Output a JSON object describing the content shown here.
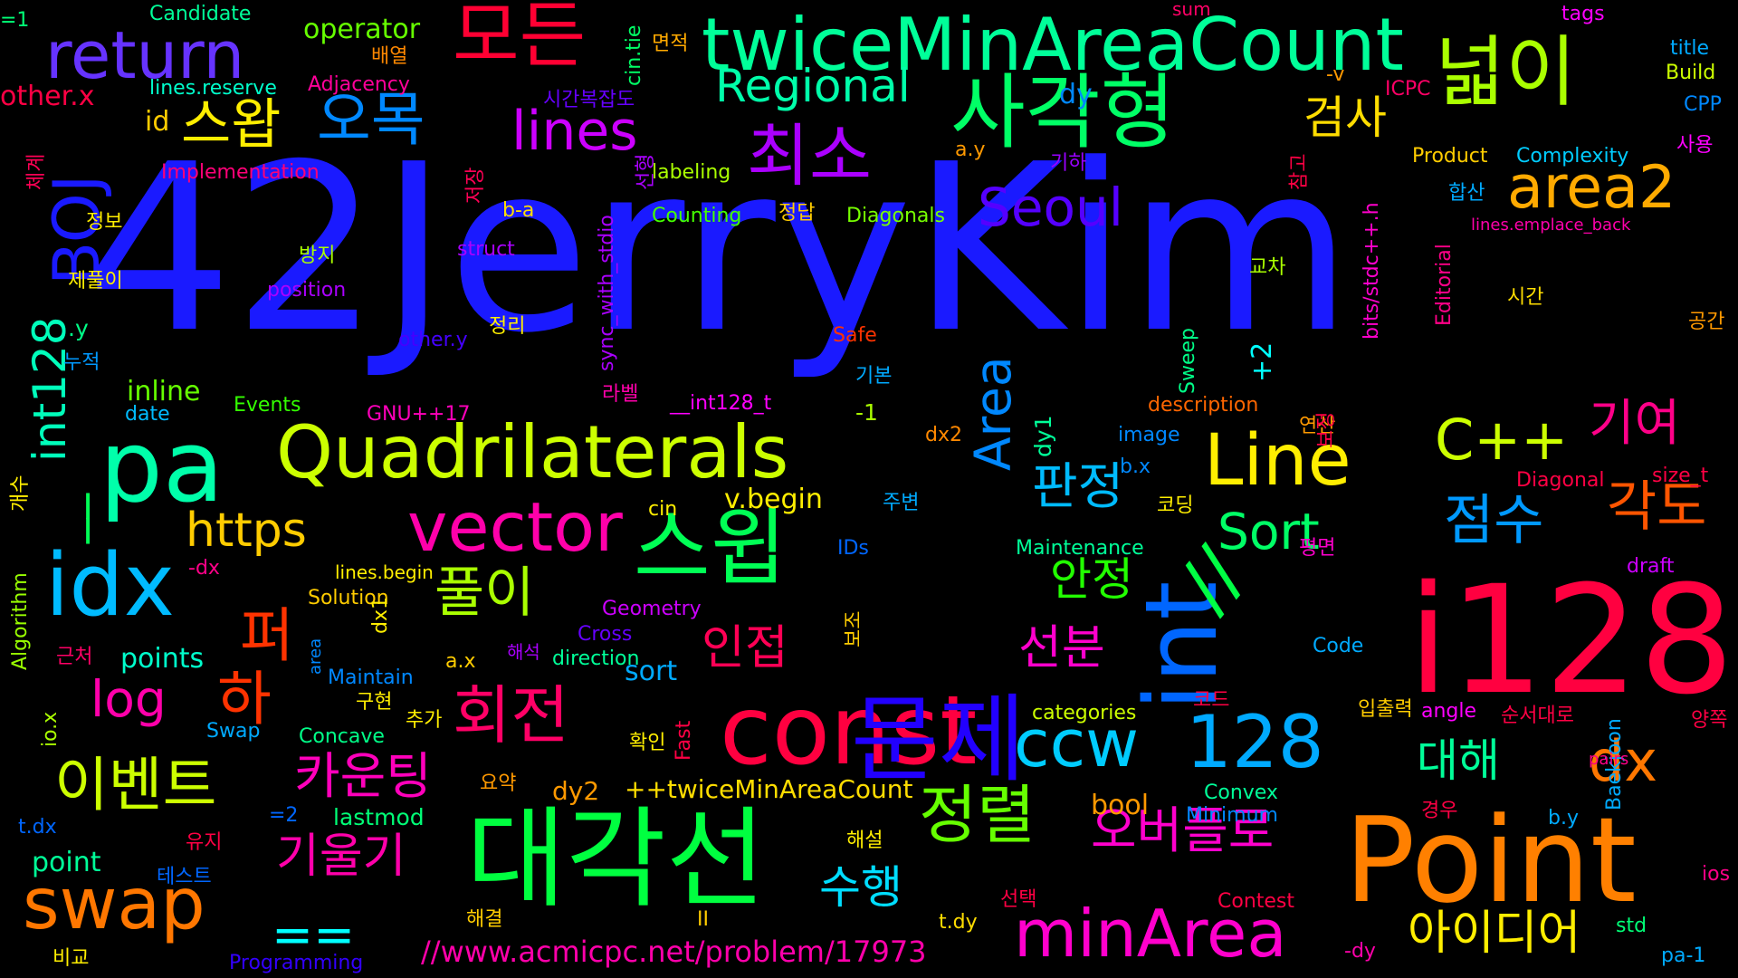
{
  "words": [
    {
      "text": "42JerryKim",
      "color": "#1a1aff"
    },
    {
      "text": "i128",
      "color": "#ff0040"
    },
    {
      "text": "Point",
      "color": "#ff8000"
    },
    {
      "text": "Quadrilaterals",
      "color": "#ccff00"
    },
    {
      "text": "대각선",
      "color": "#00ff40"
    },
    {
      "text": "const",
      "color": "#ff0040"
    },
    {
      "text": "int",
      "color": "#0066ff"
    },
    {
      "text": "twiceMinAreaCount",
      "color": "#00ff99"
    },
    {
      "text": "사각형",
      "color": "#00ff66"
    },
    {
      "text": "pa",
      "color": "#00ffaa"
    },
    {
      "text": "idx",
      "color": "#00bbff"
    },
    {
      "text": "BOJ",
      "color": "#1a1aff"
    },
    {
      "text": "return",
      "color": "#6633ff"
    },
    {
      "text": "모든",
      "color": "#ff0033"
    },
    {
      "text": "넓이",
      "color": "#aaff00"
    },
    {
      "text": "vector",
      "color": "#ff00aa"
    },
    {
      "text": "스윕",
      "color": "#00ff55"
    },
    {
      "text": "Line",
      "color": "#ffee00"
    },
    {
      "text": "swap",
      "color": "#ff7700"
    },
    {
      "text": "minArea",
      "color": "#ff00cc"
    },
    {
      "text": "ccw",
      "color": "#00ccff"
    },
    {
      "text": "128",
      "color": "#00aaff"
    },
    {
      "text": "문제",
      "color": "#2200ff"
    },
    {
      "text": "최소",
      "color": "#aa00ff"
    },
    {
      "text": "lines",
      "color": "#cc00ff"
    },
    {
      "text": "area2",
      "color": "#ffaa00"
    },
    {
      "text": "Seoul",
      "color": "#5500ff"
    },
    {
      "text": "C++",
      "color": "#ccff00"
    },
    {
      "text": "정렬",
      "color": "#66ff00"
    },
    {
      "text": "회전",
      "color": "#ff0066"
    },
    {
      "text": "이벤트",
      "color": "#ccff00"
    },
    {
      "text": "풀이",
      "color": "#aaff00"
    },
    {
      "text": "dx",
      "color": "#ff7700"
    },
    {
      "text": "//",
      "color": "#00ff44"
    },
    {
      "text": "https",
      "color": "#ffcc00"
    },
    {
      "text": "log",
      "color": "#ff00aa"
    },
    {
      "text": "Regional",
      "color": "#00ffaa"
    },
    {
      "text": "오목",
      "color": "#0088ff"
    },
    {
      "text": "스왑",
      "color": "#ffee00"
    },
    {
      "text": "카운팅",
      "color": "#ff00bb"
    },
    {
      "text": "int128",
      "color": "#00ffbb"
    },
    {
      "text": "__",
      "color": "#00ff55"
    },
    {
      "text": "Area",
      "color": "#0088ff"
    },
    {
      "text": "Sort",
      "color": "#00ff66"
    },
    {
      "text": "점수",
      "color": "#0099ff"
    },
    {
      "text": "각도",
      "color": "#ff5500"
    },
    {
      "text": "기여",
      "color": "#ff0088"
    },
    {
      "text": "검사",
      "color": "#ffdd00"
    },
    {
      "text": "판정",
      "color": "#00bbff"
    },
    {
      "text": "안정",
      "color": "#22ff00"
    },
    {
      "text": "인접",
      "color": "#ff0055"
    },
    {
      "text": "선분",
      "color": "#ff00cc"
    },
    {
      "text": "대해",
      "color": "#00ff99"
    },
    {
      "text": "오버플로",
      "color": "#ff00cc"
    },
    {
      "text": "아이디어",
      "color": "#ffee00"
    },
    {
      "text": "수행",
      "color": "#00ddff"
    },
    {
      "text": "기울기",
      "color": "#ff00aa"
    },
    {
      "text": "==",
      "color": "#00ffff"
    },
    {
      "text": "퍼",
      "color": "#ff3300"
    },
    {
      "text": "하",
      "color": "#ff3300"
    },
    {
      "text": "//www.acmicpc.net/problem/17973",
      "color": "#ff00aa"
    },
    {
      "text": "operator",
      "color": "#66ff00"
    },
    {
      "text": "Candidate",
      "color": "#00ff99"
    },
    {
      "text": "=1",
      "color": "#00ff77"
    },
    {
      "text": "other.x",
      "color": "#ff0044"
    },
    {
      "text": "lines.reserve",
      "color": "#00ffcc"
    },
    {
      "text": "Adjacency",
      "color": "#ff0099"
    },
    {
      "text": "배열",
      "color": "#ff8800"
    },
    {
      "text": "면적",
      "color": "#ffaa00"
    },
    {
      "text": "cin.tie",
      "color": "#00ff66"
    },
    {
      "text": "sum",
      "color": "#ff0066"
    },
    {
      "text": "tags",
      "color": "#ff00ff"
    },
    {
      "text": "title",
      "color": "#00aaff"
    },
    {
      "text": "Build",
      "color": "#ccff00"
    },
    {
      "text": "CPP",
      "color": "#0088ff"
    },
    {
      "text": "ICPC",
      "color": "#ff0066"
    },
    {
      "text": "-v",
      "color": "#ff9900"
    },
    {
      "text": "시간복잡도",
      "color": "#6600ff"
    },
    {
      "text": "Implementation",
      "color": "#ff0077"
    },
    {
      "text": "id",
      "color": "#ffcc00"
    },
    {
      "text": "체계",
      "color": "#ff0055"
    },
    {
      "text": "저장",
      "color": "#ff0055"
    },
    {
      "text": "labeling",
      "color": "#aaff00"
    },
    {
      "text": "정답",
      "color": "#ffcc00"
    },
    {
      "text": "Counting",
      "color": "#44ff00"
    },
    {
      "text": "Diagonals",
      "color": "#77ff00"
    },
    {
      "text": "Product",
      "color": "#ffcc00"
    },
    {
      "text": "Complexity",
      "color": "#00ccff"
    },
    {
      "text": "사용",
      "color": "#ff00ff"
    },
    {
      "text": "기하",
      "color": "#9900ff"
    },
    {
      "text": "참고",
      "color": "#ff0044"
    },
    {
      "text": "합산",
      "color": "#00aaff"
    },
    {
      "text": "lines.emplace_back",
      "color": "#ff00aa"
    },
    {
      "text": "a.y",
      "color": "#ff9900"
    },
    {
      "text": "b-a",
      "color": "#ffdd00"
    },
    {
      "text": "정보",
      "color": "#ffee00"
    },
    {
      "text": "struct",
      "color": "#aa00ff"
    },
    {
      "text": "방지",
      "color": "#aaff00"
    },
    {
      "text": "position",
      "color": "#aa00ff"
    },
    {
      "text": "제풀이",
      "color": "#ffee00"
    },
    {
      "text": "bits/stdc++.h",
      "color": "#ff00cc"
    },
    {
      "text": "Editorial",
      "color": "#ff0088"
    },
    {
      "text": "시간",
      "color": "#ffdd00"
    },
    {
      "text": "공간",
      "color": "#ff9900"
    },
    {
      "text": "교차",
      "color": "#aaff00"
    },
    {
      "text": "정리",
      "color": "#ffee00"
    },
    {
      "text": "other.y",
      "color": "#4400ff"
    },
    {
      "text": "Safe",
      "color": "#ff3300"
    },
    {
      "text": ".y",
      "color": "#00ff88"
    },
    {
      "text": "누적",
      "color": "#0099ff"
    },
    {
      "text": "inline",
      "color": "#66ff00"
    },
    {
      "text": "Events",
      "color": "#33ff00"
    },
    {
      "text": "GNU++17",
      "color": "#ff00bb"
    },
    {
      "text": "date",
      "color": "#00bbff"
    },
    {
      "text": "__int128_t",
      "color": "#ff00ff"
    },
    {
      "text": "-1",
      "color": "#aaff00"
    },
    {
      "text": "기본",
      "color": "#00aaff"
    },
    {
      "text": "description",
      "color": "#ff6600"
    },
    {
      "text": "연산",
      "color": "#ff9900"
    },
    {
      "text": "보정",
      "color": "#ff0044"
    },
    {
      "text": "image",
      "color": "#0088ff"
    },
    {
      "text": "b.x",
      "color": "#0088ff"
    },
    {
      "text": "dx2",
      "color": "#ff8800"
    },
    {
      "text": "dy1",
      "color": "#00ff99"
    },
    {
      "text": "dy",
      "color": "#0088ff"
    },
    {
      "text": "+2",
      "color": "#00ffff"
    },
    {
      "text": "Sweep",
      "color": "#00ff88"
    },
    {
      "text": "라벨",
      "color": "#ff00aa"
    },
    {
      "text": "sync_with_stdio",
      "color": "#aa00ff"
    },
    {
      "text": "선형",
      "color": "#aa00ff"
    },
    {
      "text": "개수",
      "color": "#ffee00"
    },
    {
      "text": "Algorithm",
      "color": "#99ff00"
    },
    {
      "text": "-dx",
      "color": "#ff0088"
    },
    {
      "text": "Solution",
      "color": "#ffcc00"
    },
    {
      "text": "lines.begin",
      "color": "#ffee00"
    },
    {
      "text": "IDs",
      "color": "#0066ff"
    },
    {
      "text": "Geometry",
      "color": "#cc00ff"
    },
    {
      "text": "Cross",
      "color": "#6600ff"
    },
    {
      "text": "direction",
      "color": "#00ff99"
    },
    {
      "text": "a.x",
      "color": "#ffcc00"
    },
    {
      "text": "dx1",
      "color": "#ffee00"
    },
    {
      "text": "해석",
      "color": "#aa00ff"
    },
    {
      "text": "points",
      "color": "#00ffcc"
    },
    {
      "text": "sort",
      "color": "#00aaff"
    },
    {
      "text": "근처",
      "color": "#ff0066"
    },
    {
      "text": "area",
      "color": "#0088ff"
    },
    {
      "text": "Maintain",
      "color": "#0088ff"
    },
    {
      "text": "구현",
      "color": "#ffee00"
    },
    {
      "text": "cin",
      "color": "#ffee00"
    },
    {
      "text": "v.begin",
      "color": "#ffee00"
    },
    {
      "text": "주변",
      "color": "#00aaff"
    },
    {
      "text": "보조",
      "color": "#ffcc00"
    },
    {
      "text": "Maintenance",
      "color": "#00ff99"
    },
    {
      "text": "코딩",
      "color": "#ffee00"
    },
    {
      "text": "평면",
      "color": "#ff00cc"
    },
    {
      "text": "Diagonal",
      "color": "#ff0044"
    },
    {
      "text": "size_t",
      "color": "#ff0044"
    },
    {
      "text": "draft",
      "color": "#cc00ff"
    },
    {
      "text": "Code",
      "color": "#00aaff"
    },
    {
      "text": "categories",
      "color": "#ccff00"
    },
    {
      "text": "코드",
      "color": "#ff0044"
    },
    {
      "text": "입출력",
      "color": "#ffcc00"
    },
    {
      "text": "angle",
      "color": "#ff00ff"
    },
    {
      "text": "순서대로",
      "color": "#ff0044"
    },
    {
      "text": "Baekjoon",
      "color": "#00aaff"
    },
    {
      "text": "양쪽",
      "color": "#ff0044"
    },
    {
      "text": "pairs",
      "color": "#ff0088"
    },
    {
      "text": "io.x",
      "color": "#aaff00"
    },
    {
      "text": "Swap",
      "color": "#00aaff"
    },
    {
      "text": "Concave",
      "color": "#00ff88"
    },
    {
      "text": "추가",
      "color": "#ffee00"
    },
    {
      "text": "확인",
      "color": "#ffee00"
    },
    {
      "text": "Fast",
      "color": "#ff0044"
    },
    {
      "text": "요약",
      "color": "#ff9900"
    },
    {
      "text": "dy2",
      "color": "#ff9900"
    },
    {
      "text": "++twiceMinAreaCount",
      "color": "#ffdd00"
    },
    {
      "text": "bool",
      "color": "#ff9900"
    },
    {
      "text": "Convex",
      "color": "#00ff99"
    },
    {
      "text": "Minimum",
      "color": "#0088ff"
    },
    {
      "text": "경우",
      "color": "#ff0044"
    },
    {
      "text": "b.y",
      "color": "#00aaff"
    },
    {
      "text": "t.dx",
      "color": "#0066ff"
    },
    {
      "text": "=2",
      "color": "#0066ff"
    },
    {
      "text": "유지",
      "color": "#ff0044"
    },
    {
      "text": "lastmod",
      "color": "#00ff77"
    },
    {
      "text": "해설",
      "color": "#ffee00"
    },
    {
      "text": "ios",
      "color": "#ff0088"
    },
    {
      "text": "point",
      "color": "#00ff99"
    },
    {
      "text": "테스트",
      "color": "#0066ff"
    },
    {
      "text": "선택",
      "color": "#ff0044"
    },
    {
      "text": "Contest",
      "color": "#ff0044"
    },
    {
      "text": "해결",
      "color": "#ffcc00"
    },
    {
      "text": "II",
      "color": "#ffcc00"
    },
    {
      "text": "t.dy",
      "color": "#ffdd00"
    },
    {
      "text": "std",
      "color": "#00ff77"
    },
    {
      "text": "비교",
      "color": "#ffee00"
    },
    {
      "text": "Programming",
      "color": "#3300ff"
    },
    {
      "text": "-dy",
      "color": "#ff00aa"
    },
    {
      "text": "pa-1",
      "color": "#00aaff"
    }
  ]
}
